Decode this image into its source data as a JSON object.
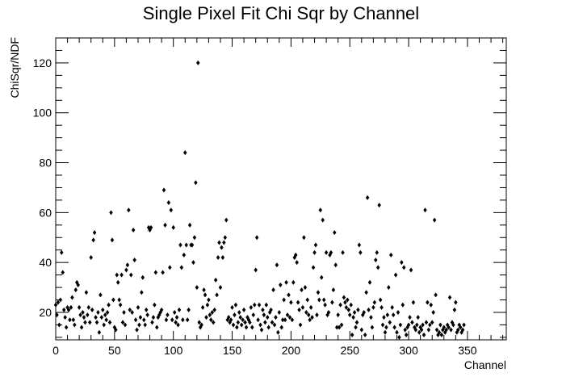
{
  "chart_data": {
    "type": "scatter",
    "title": "Single Pixel Fit Chi Sqr by Channel",
    "xlabel": "Channel",
    "ylabel": "ChiSqr/NDF",
    "xlim": [
      0,
      383
    ],
    "ylim": [
      9,
      130
    ],
    "x_ticks": [
      0,
      50,
      100,
      150,
      200,
      250,
      300,
      350
    ],
    "y_ticks": [
      20,
      40,
      60,
      80,
      100,
      120
    ],
    "grid": false,
    "legend": "none",
    "marker": "diamond",
    "marker_color": "#000000",
    "points": [
      [
        0,
        23
      ],
      [
        1,
        19
      ],
      [
        2,
        24
      ],
      [
        3,
        15
      ],
      [
        4,
        25
      ],
      [
        5,
        44
      ],
      [
        6,
        36
      ],
      [
        7,
        21
      ],
      [
        8,
        18
      ],
      [
        9,
        14
      ],
      [
        10,
        22
      ],
      [
        11,
        21
      ],
      [
        12,
        17
      ],
      [
        13,
        22
      ],
      [
        14,
        26
      ],
      [
        15,
        17
      ],
      [
        16,
        15
      ],
      [
        17,
        29
      ],
      [
        18,
        32
      ],
      [
        19,
        31
      ],
      [
        20,
        22
      ],
      [
        21,
        19
      ],
      [
        22,
        14
      ],
      [
        23,
        20
      ],
      [
        24,
        18
      ],
      [
        25,
        16
      ],
      [
        26,
        28
      ],
      [
        27,
        19
      ],
      [
        28,
        22
      ],
      [
        29,
        16
      ],
      [
        30,
        42
      ],
      [
        31,
        21
      ],
      [
        32,
        49
      ],
      [
        33,
        52
      ],
      [
        34,
        18
      ],
      [
        35,
        16
      ],
      [
        36,
        20
      ],
      [
        37,
        12
      ],
      [
        38,
        27
      ],
      [
        39,
        18
      ],
      [
        40,
        21
      ],
      [
        41,
        15
      ],
      [
        42,
        19
      ],
      [
        43,
        17
      ],
      [
        44,
        20
      ],
      [
        45,
        23
      ],
      [
        46,
        16
      ],
      [
        47,
        60
      ],
      [
        48,
        49
      ],
      [
        49,
        25
      ],
      [
        50,
        14
      ],
      [
        51,
        13
      ],
      [
        52,
        35
      ],
      [
        53,
        32
      ],
      [
        54,
        25
      ],
      [
        55,
        23
      ],
      [
        56,
        35
      ],
      [
        57,
        16
      ],
      [
        58,
        20
      ],
      [
        59,
        15
      ],
      [
        60,
        37
      ],
      [
        61,
        39
      ],
      [
        62,
        61
      ],
      [
        63,
        21
      ],
      [
        64,
        35
      ],
      [
        65,
        20
      ],
      [
        66,
        53
      ],
      [
        67,
        41
      ],
      [
        68,
        17
      ],
      [
        69,
        13
      ],
      [
        70,
        22
      ],
      [
        71,
        15
      ],
      [
        72,
        18
      ],
      [
        73,
        28
      ],
      [
        74,
        34
      ],
      [
        75,
        17
      ],
      [
        76,
        15
      ],
      [
        77,
        21
      ],
      [
        78,
        19
      ],
      [
        79,
        54
      ],
      [
        80,
        53
      ],
      [
        81,
        54
      ],
      [
        82,
        16
      ],
      [
        83,
        18
      ],
      [
        84,
        23
      ],
      [
        85,
        36
      ],
      [
        86,
        14
      ],
      [
        87,
        18
      ],
      [
        88,
        19
      ],
      [
        89,
        20
      ],
      [
        90,
        21
      ],
      [
        91,
        36
      ],
      [
        92,
        69
      ],
      [
        93,
        55
      ],
      [
        94,
        17
      ],
      [
        95,
        19
      ],
      [
        96,
        64
      ],
      [
        97,
        38
      ],
      [
        98,
        61
      ],
      [
        99,
        17
      ],
      [
        100,
        54
      ],
      [
        101,
        20
      ],
      [
        102,
        16
      ],
      [
        103,
        18
      ],
      [
        104,
        15
      ],
      [
        105,
        21
      ],
      [
        106,
        47
      ],
      [
        107,
        38
      ],
      [
        108,
        17
      ],
      [
        109,
        43
      ],
      [
        110,
        84
      ],
      [
        111,
        47
      ],
      [
        112,
        17
      ],
      [
        113,
        21
      ],
      [
        114,
        55
      ],
      [
        115,
        47
      ],
      [
        116,
        47
      ],
      [
        117,
        40
      ],
      [
        118,
        50
      ],
      [
        119,
        72
      ],
      [
        120,
        30
      ],
      [
        121,
        120
      ],
      [
        122,
        16
      ],
      [
        123,
        14
      ],
      [
        124,
        15
      ],
      [
        125,
        22
      ],
      [
        126,
        29
      ],
      [
        127,
        27
      ],
      [
        128,
        18
      ],
      [
        129,
        23
      ],
      [
        130,
        25
      ],
      [
        131,
        19
      ],
      [
        132,
        17
      ],
      [
        133,
        20
      ],
      [
        134,
        16
      ],
      [
        135,
        21
      ],
      [
        136,
        33
      ],
      [
        137,
        27
      ],
      [
        138,
        42
      ],
      [
        139,
        48
      ],
      [
        140,
        30
      ],
      [
        141,
        46
      ],
      [
        142,
        42
      ],
      [
        143,
        48
      ],
      [
        144,
        50
      ],
      [
        145,
        57
      ],
      [
        146,
        17
      ],
      [
        147,
        18
      ],
      [
        148,
        16
      ],
      [
        149,
        17
      ],
      [
        150,
        22
      ],
      [
        151,
        15
      ],
      [
        152,
        19
      ],
      [
        153,
        23
      ],
      [
        154,
        14
      ],
      [
        155,
        16
      ],
      [
        156,
        20
      ],
      [
        157,
        18
      ],
      [
        158,
        15
      ],
      [
        159,
        17
      ],
      [
        160,
        21
      ],
      [
        161,
        16
      ],
      [
        162,
        14
      ],
      [
        163,
        18
      ],
      [
        164,
        17
      ],
      [
        165,
        16
      ],
      [
        166,
        22
      ],
      [
        167,
        14
      ],
      [
        168,
        19
      ],
      [
        169,
        23
      ],
      [
        170,
        37
      ],
      [
        171,
        50
      ],
      [
        172,
        17
      ],
      [
        173,
        23
      ],
      [
        174,
        15
      ],
      [
        175,
        13
      ],
      [
        176,
        21
      ],
      [
        177,
        19
      ],
      [
        178,
        16
      ],
      [
        179,
        23
      ],
      [
        180,
        18
      ],
      [
        181,
        14
      ],
      [
        182,
        20
      ],
      [
        183,
        21
      ],
      [
        184,
        16
      ],
      [
        185,
        29
      ],
      [
        186,
        15
      ],
      [
        187,
        18
      ],
      [
        188,
        39
      ],
      [
        189,
        12
      ],
      [
        190,
        20
      ],
      [
        191,
        31
      ],
      [
        192,
        14
      ],
      [
        193,
        17
      ],
      [
        194,
        25
      ],
      [
        195,
        17
      ],
      [
        196,
        32
      ],
      [
        197,
        19
      ],
      [
        198,
        27
      ],
      [
        199,
        18
      ],
      [
        200,
        24
      ],
      [
        201,
        17
      ],
      [
        202,
        32
      ],
      [
        203,
        42
      ],
      [
        204,
        43
      ],
      [
        205,
        40
      ],
      [
        206,
        24
      ],
      [
        207,
        21
      ],
      [
        208,
        15
      ],
      [
        209,
        29
      ],
      [
        210,
        22
      ],
      [
        211,
        50
      ],
      [
        212,
        30
      ],
      [
        213,
        20
      ],
      [
        214,
        25
      ],
      [
        215,
        19
      ],
      [
        216,
        17
      ],
      [
        217,
        22
      ],
      [
        218,
        18
      ],
      [
        219,
        38
      ],
      [
        220,
        44
      ],
      [
        221,
        47
      ],
      [
        222,
        19
      ],
      [
        223,
        28
      ],
      [
        224,
        25
      ],
      [
        225,
        61
      ],
      [
        226,
        34
      ],
      [
        227,
        57
      ],
      [
        228,
        25
      ],
      [
        229,
        23
      ],
      [
        230,
        44
      ],
      [
        231,
        19
      ],
      [
        232,
        20
      ],
      [
        233,
        43
      ],
      [
        234,
        44
      ],
      [
        235,
        24
      ],
      [
        236,
        29
      ],
      [
        237,
        52
      ],
      [
        238,
        39
      ],
      [
        239,
        14
      ],
      [
        240,
        19
      ],
      [
        241,
        14
      ],
      [
        242,
        23
      ],
      [
        243,
        15
      ],
      [
        244,
        44
      ],
      [
        245,
        26
      ],
      [
        246,
        24
      ],
      [
        247,
        22
      ],
      [
        248,
        25
      ],
      [
        249,
        21
      ],
      [
        250,
        19
      ],
      [
        251,
        23
      ],
      [
        252,
        11
      ],
      [
        253,
        18
      ],
      [
        254,
        20
      ],
      [
        255,
        14
      ],
      [
        256,
        16
      ],
      [
        257,
        21
      ],
      [
        258,
        47
      ],
      [
        259,
        44
      ],
      [
        260,
        13
      ],
      [
        261,
        19
      ],
      [
        262,
        20
      ],
      [
        263,
        11
      ],
      [
        264,
        28
      ],
      [
        265,
        66
      ],
      [
        266,
        21
      ],
      [
        267,
        32
      ],
      [
        268,
        18
      ],
      [
        269,
        14
      ],
      [
        270,
        22
      ],
      [
        271,
        24
      ],
      [
        272,
        41
      ],
      [
        273,
        44
      ],
      [
        274,
        38
      ],
      [
        275,
        63
      ],
      [
        276,
        25
      ],
      [
        277,
        22
      ],
      [
        278,
        15
      ],
      [
        279,
        18
      ],
      [
        280,
        12
      ],
      [
        281,
        14
      ],
      [
        282,
        19
      ],
      [
        283,
        30
      ],
      [
        284,
        16
      ],
      [
        285,
        43
      ],
      [
        286,
        22
      ],
      [
        287,
        19
      ],
      [
        288,
        14
      ],
      [
        289,
        35
      ],
      [
        290,
        12
      ],
      [
        291,
        20
      ],
      [
        292,
        10
      ],
      [
        293,
        15
      ],
      [
        294,
        40
      ],
      [
        295,
        23
      ],
      [
        296,
        38
      ],
      [
        297,
        13
      ],
      [
        298,
        11
      ],
      [
        299,
        14
      ],
      [
        300,
        15
      ],
      [
        301,
        18
      ],
      [
        302,
        37
      ],
      [
        303,
        16
      ],
      [
        304,
        24
      ],
      [
        305,
        14
      ],
      [
        306,
        13
      ],
      [
        307,
        15
      ],
      [
        308,
        18
      ],
      [
        309,
        12
      ],
      [
        310,
        14
      ],
      [
        311,
        13
      ],
      [
        312,
        15
      ],
      [
        313,
        11
      ],
      [
        314,
        61
      ],
      [
        315,
        16
      ],
      [
        316,
        24
      ],
      [
        317,
        13
      ],
      [
        318,
        15
      ],
      [
        319,
        23
      ],
      [
        320,
        16
      ],
      [
        321,
        20
      ],
      [
        322,
        57
      ],
      [
        323,
        27
      ],
      [
        324,
        13
      ],
      [
        325,
        11
      ],
      [
        326,
        12
      ],
      [
        327,
        15
      ],
      [
        328,
        11
      ],
      [
        329,
        13
      ],
      [
        330,
        14
      ],
      [
        331,
        12
      ],
      [
        332,
        13
      ],
      [
        333,
        15
      ],
      [
        334,
        14
      ],
      [
        335,
        26
      ],
      [
        336,
        13
      ],
      [
        337,
        16
      ],
      [
        338,
        15
      ],
      [
        339,
        21
      ],
      [
        340,
        24
      ],
      [
        341,
        12
      ],
      [
        342,
        13
      ],
      [
        343,
        15
      ],
      [
        344,
        14
      ],
      [
        345,
        12
      ],
      [
        346,
        13
      ],
      [
        347,
        15
      ]
    ]
  }
}
